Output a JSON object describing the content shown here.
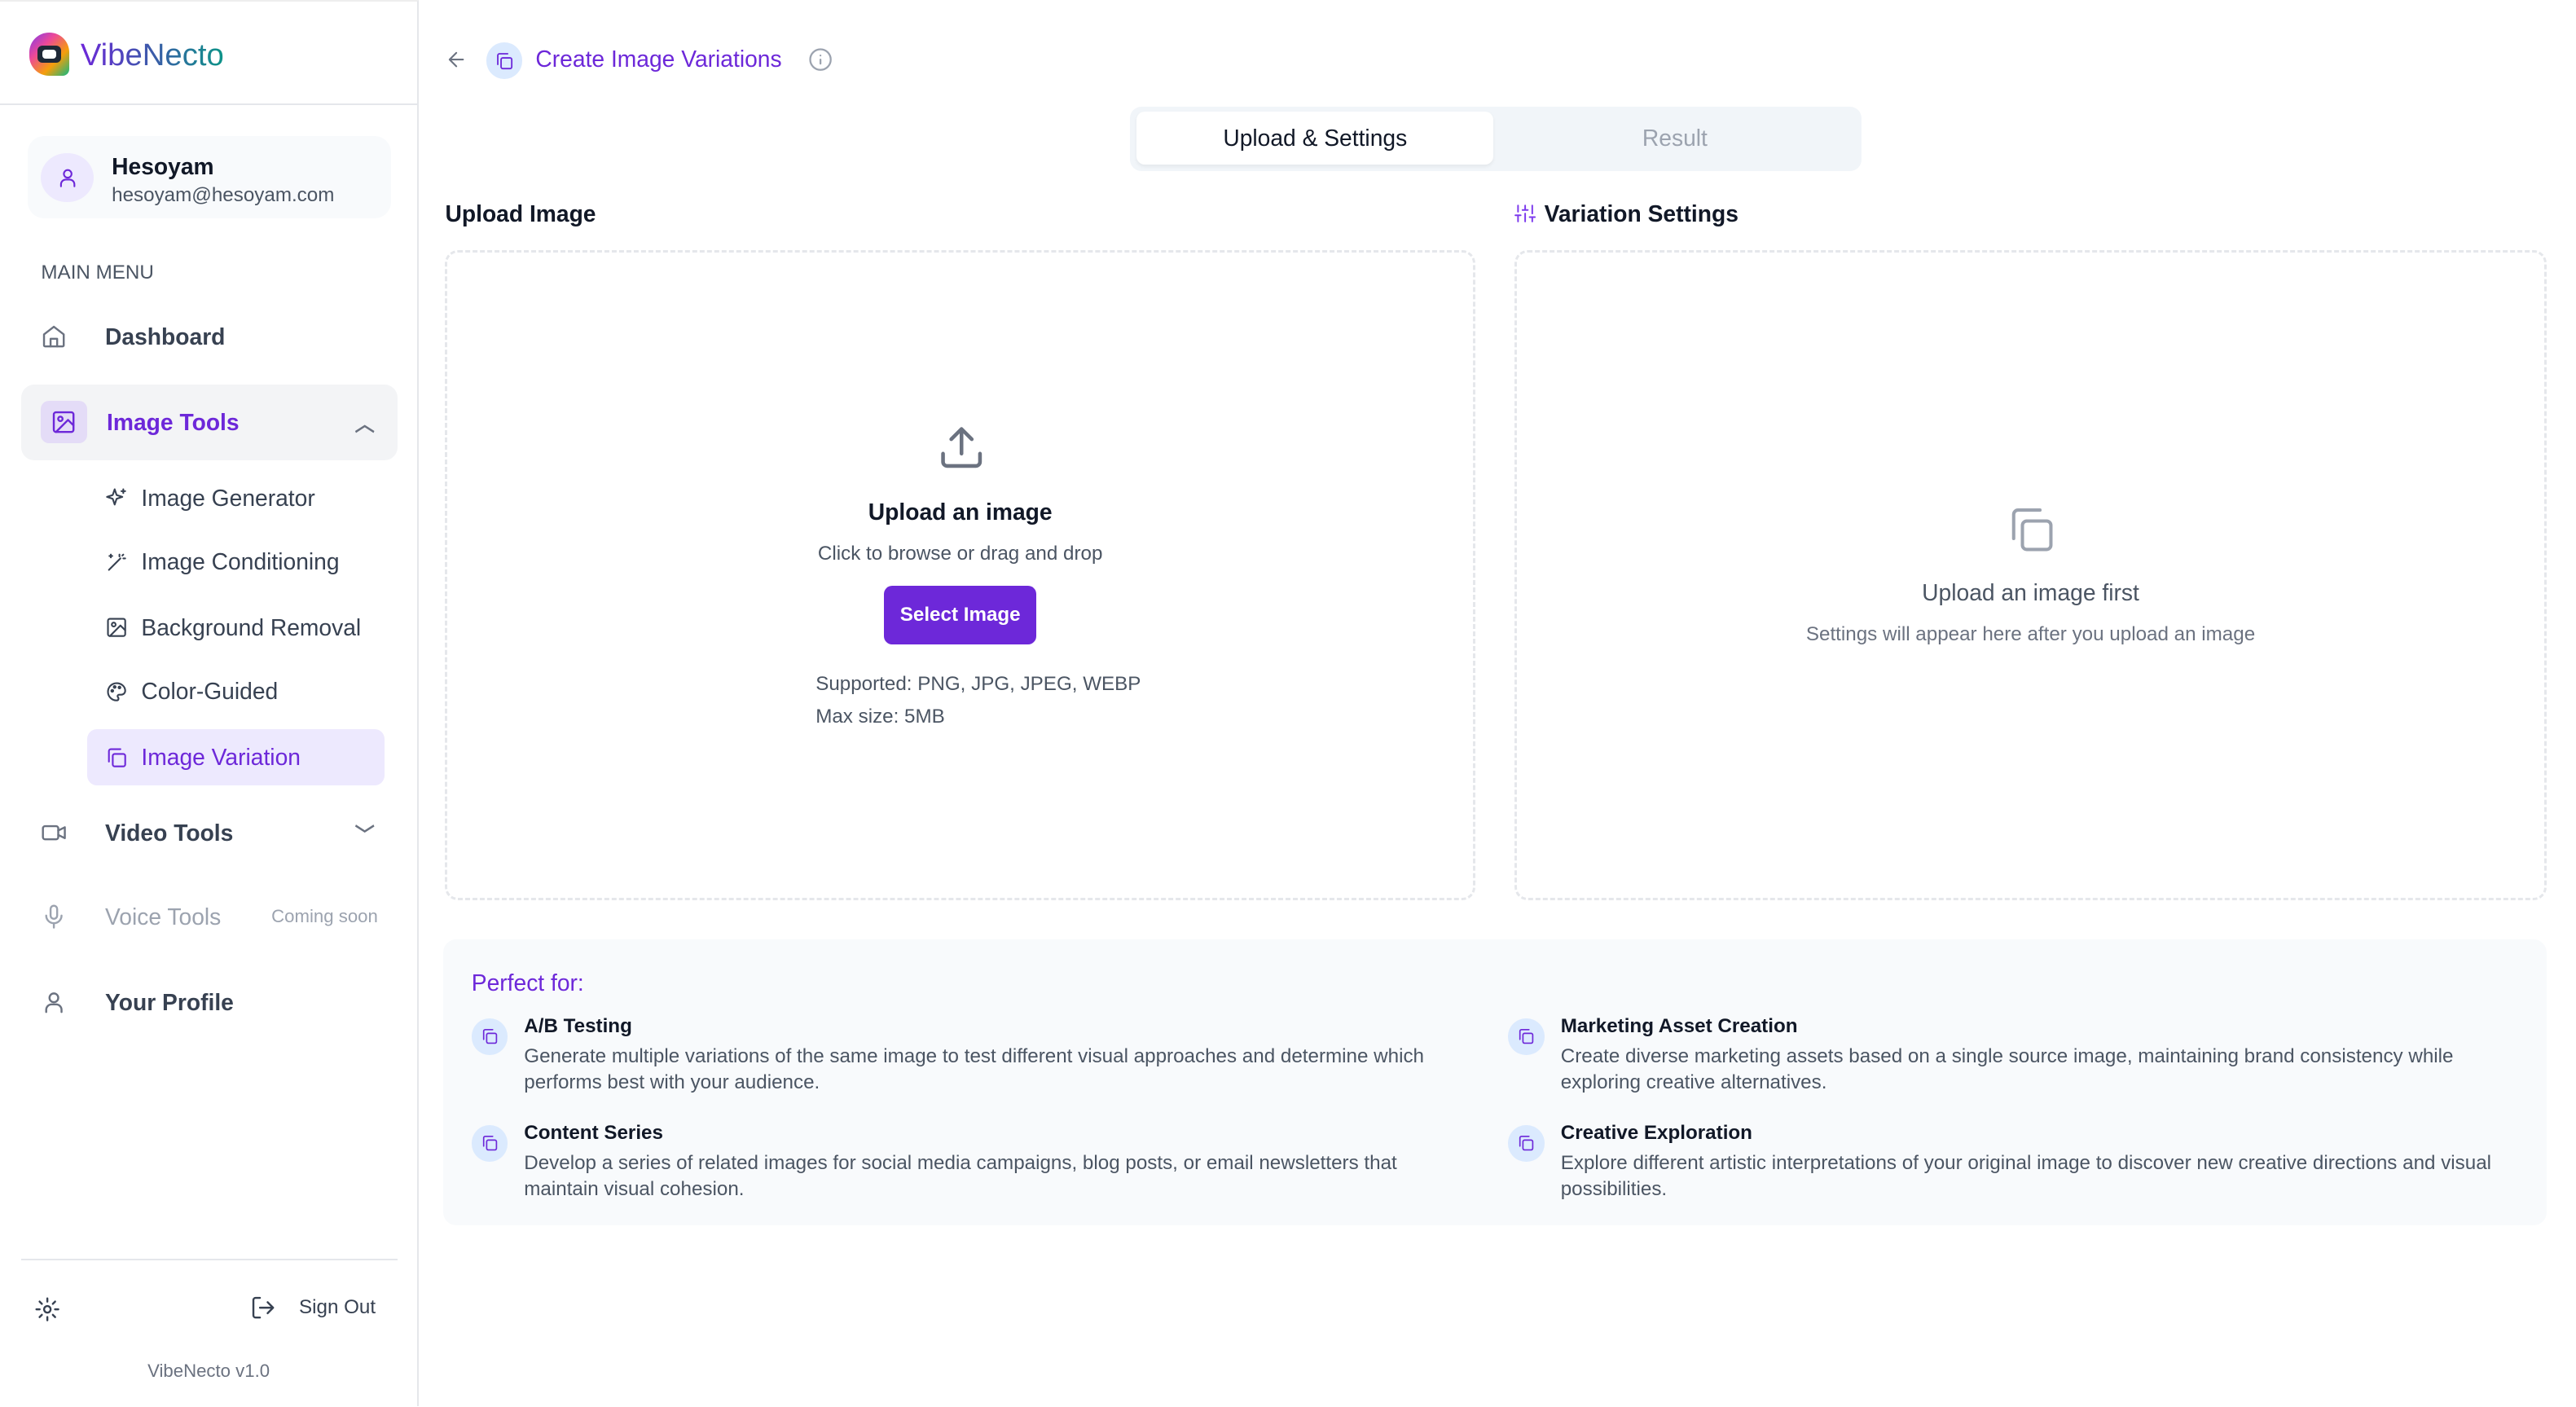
{
  "app": {
    "name": "VibeNecto",
    "version": "VibeNecto v1.0"
  },
  "user": {
    "name": "Hesoyam",
    "email": "hesoyam@hesoyam.com"
  },
  "sidebar": {
    "section": "MAIN MENU",
    "dashboard": "Dashboard",
    "image_tools": "Image Tools",
    "sub": [
      "Image Generator",
      "Image Conditioning",
      "Background Removal",
      "Color-Guided",
      "Image Variation"
    ],
    "video_tools": "Video Tools",
    "voice_tools": "Voice Tools",
    "coming_soon": "Coming soon",
    "profile": "Your Profile",
    "sign_out": "Sign Out"
  },
  "header": {
    "title": "Create Image Variations"
  },
  "tabs": [
    "Upload & Settings",
    "Result"
  ],
  "upload": {
    "heading": "Upload Image",
    "title": "Upload an image",
    "subtitle": "Click to browse or drag and drop",
    "button": "Select Image",
    "supported": "Supported: PNG, JPG, JPEG, WEBP",
    "max": "Max size: 5MB"
  },
  "settings": {
    "heading": "Variation Settings",
    "title": "Upload an image first",
    "subtitle": "Settings will appear here after you upload an image"
  },
  "perfect": {
    "heading": "Perfect for:",
    "items": [
      {
        "title": "A/B Testing",
        "desc": "Generate multiple variations of the same image to test different visual approaches and determine which performs best with your audience."
      },
      {
        "title": "Marketing Asset Creation",
        "desc": "Create diverse marketing assets based on a single source image, maintaining brand consistency while exploring creative alternatives."
      },
      {
        "title": "Content Series",
        "desc": "Develop a series of related images for social media campaigns, blog posts, or email newsletters that maintain visual cohesion."
      },
      {
        "title": "Creative Exploration",
        "desc": "Explore different artistic interpretations of your original image to discover new creative directions and visual possibilities."
      }
    ]
  },
  "colors": {
    "accent": "#6d28d9",
    "accent_light": "#ede9fe"
  }
}
